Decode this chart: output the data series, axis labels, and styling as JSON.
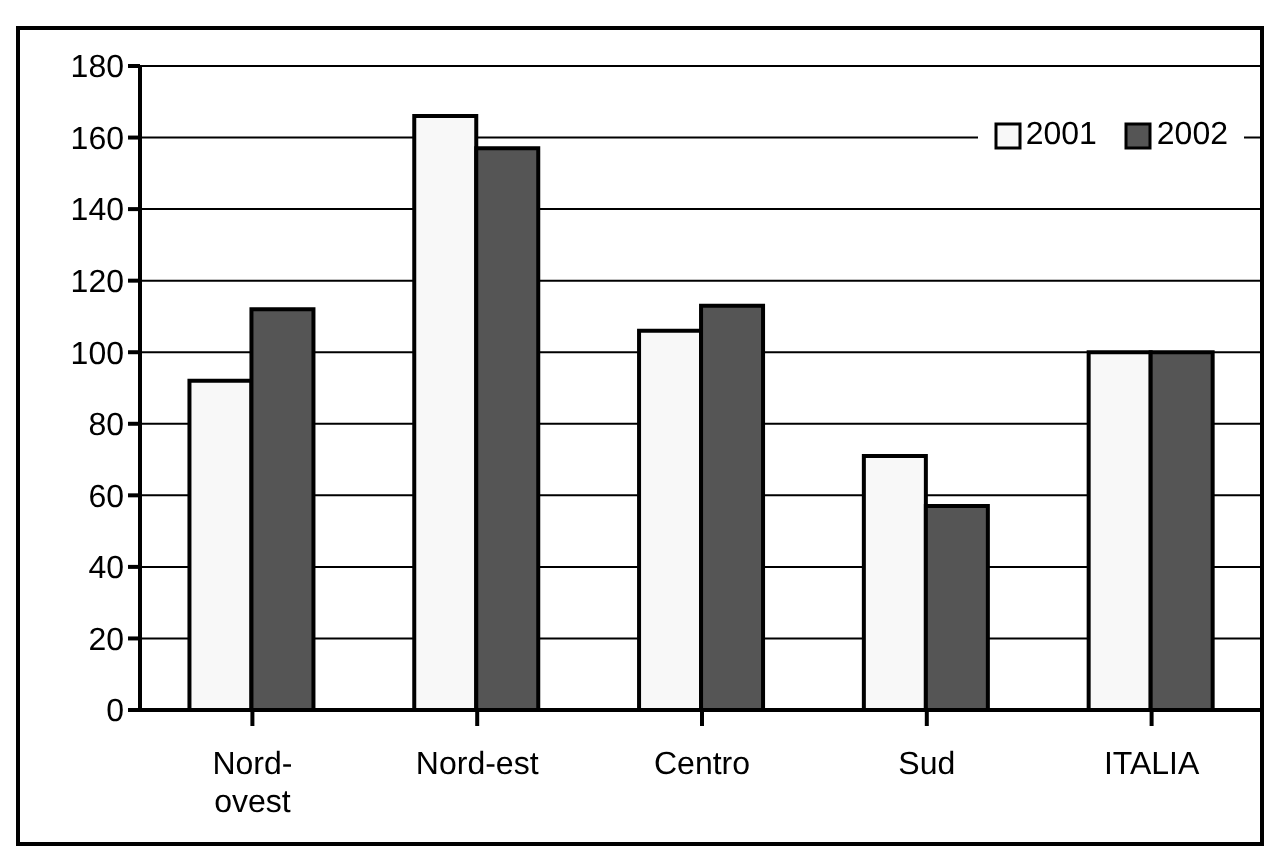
{
  "chart_data": {
    "type": "bar",
    "categories": [
      "Nord-ovest",
      "Nord-est",
      "Centro",
      "Sud",
      "ITALIA"
    ],
    "series": [
      {
        "name": "2001",
        "color": "#f8f8f8",
        "values": [
          92,
          166,
          106,
          71,
          100
        ]
      },
      {
        "name": "2002",
        "color": "#555555",
        "values": [
          112,
          157,
          113,
          57,
          100
        ]
      }
    ],
    "ylim": [
      0,
      180
    ],
    "yticks": [
      0,
      20,
      40,
      60,
      80,
      100,
      120,
      140,
      160,
      180
    ],
    "grid": "y",
    "legend": "top right"
  }
}
